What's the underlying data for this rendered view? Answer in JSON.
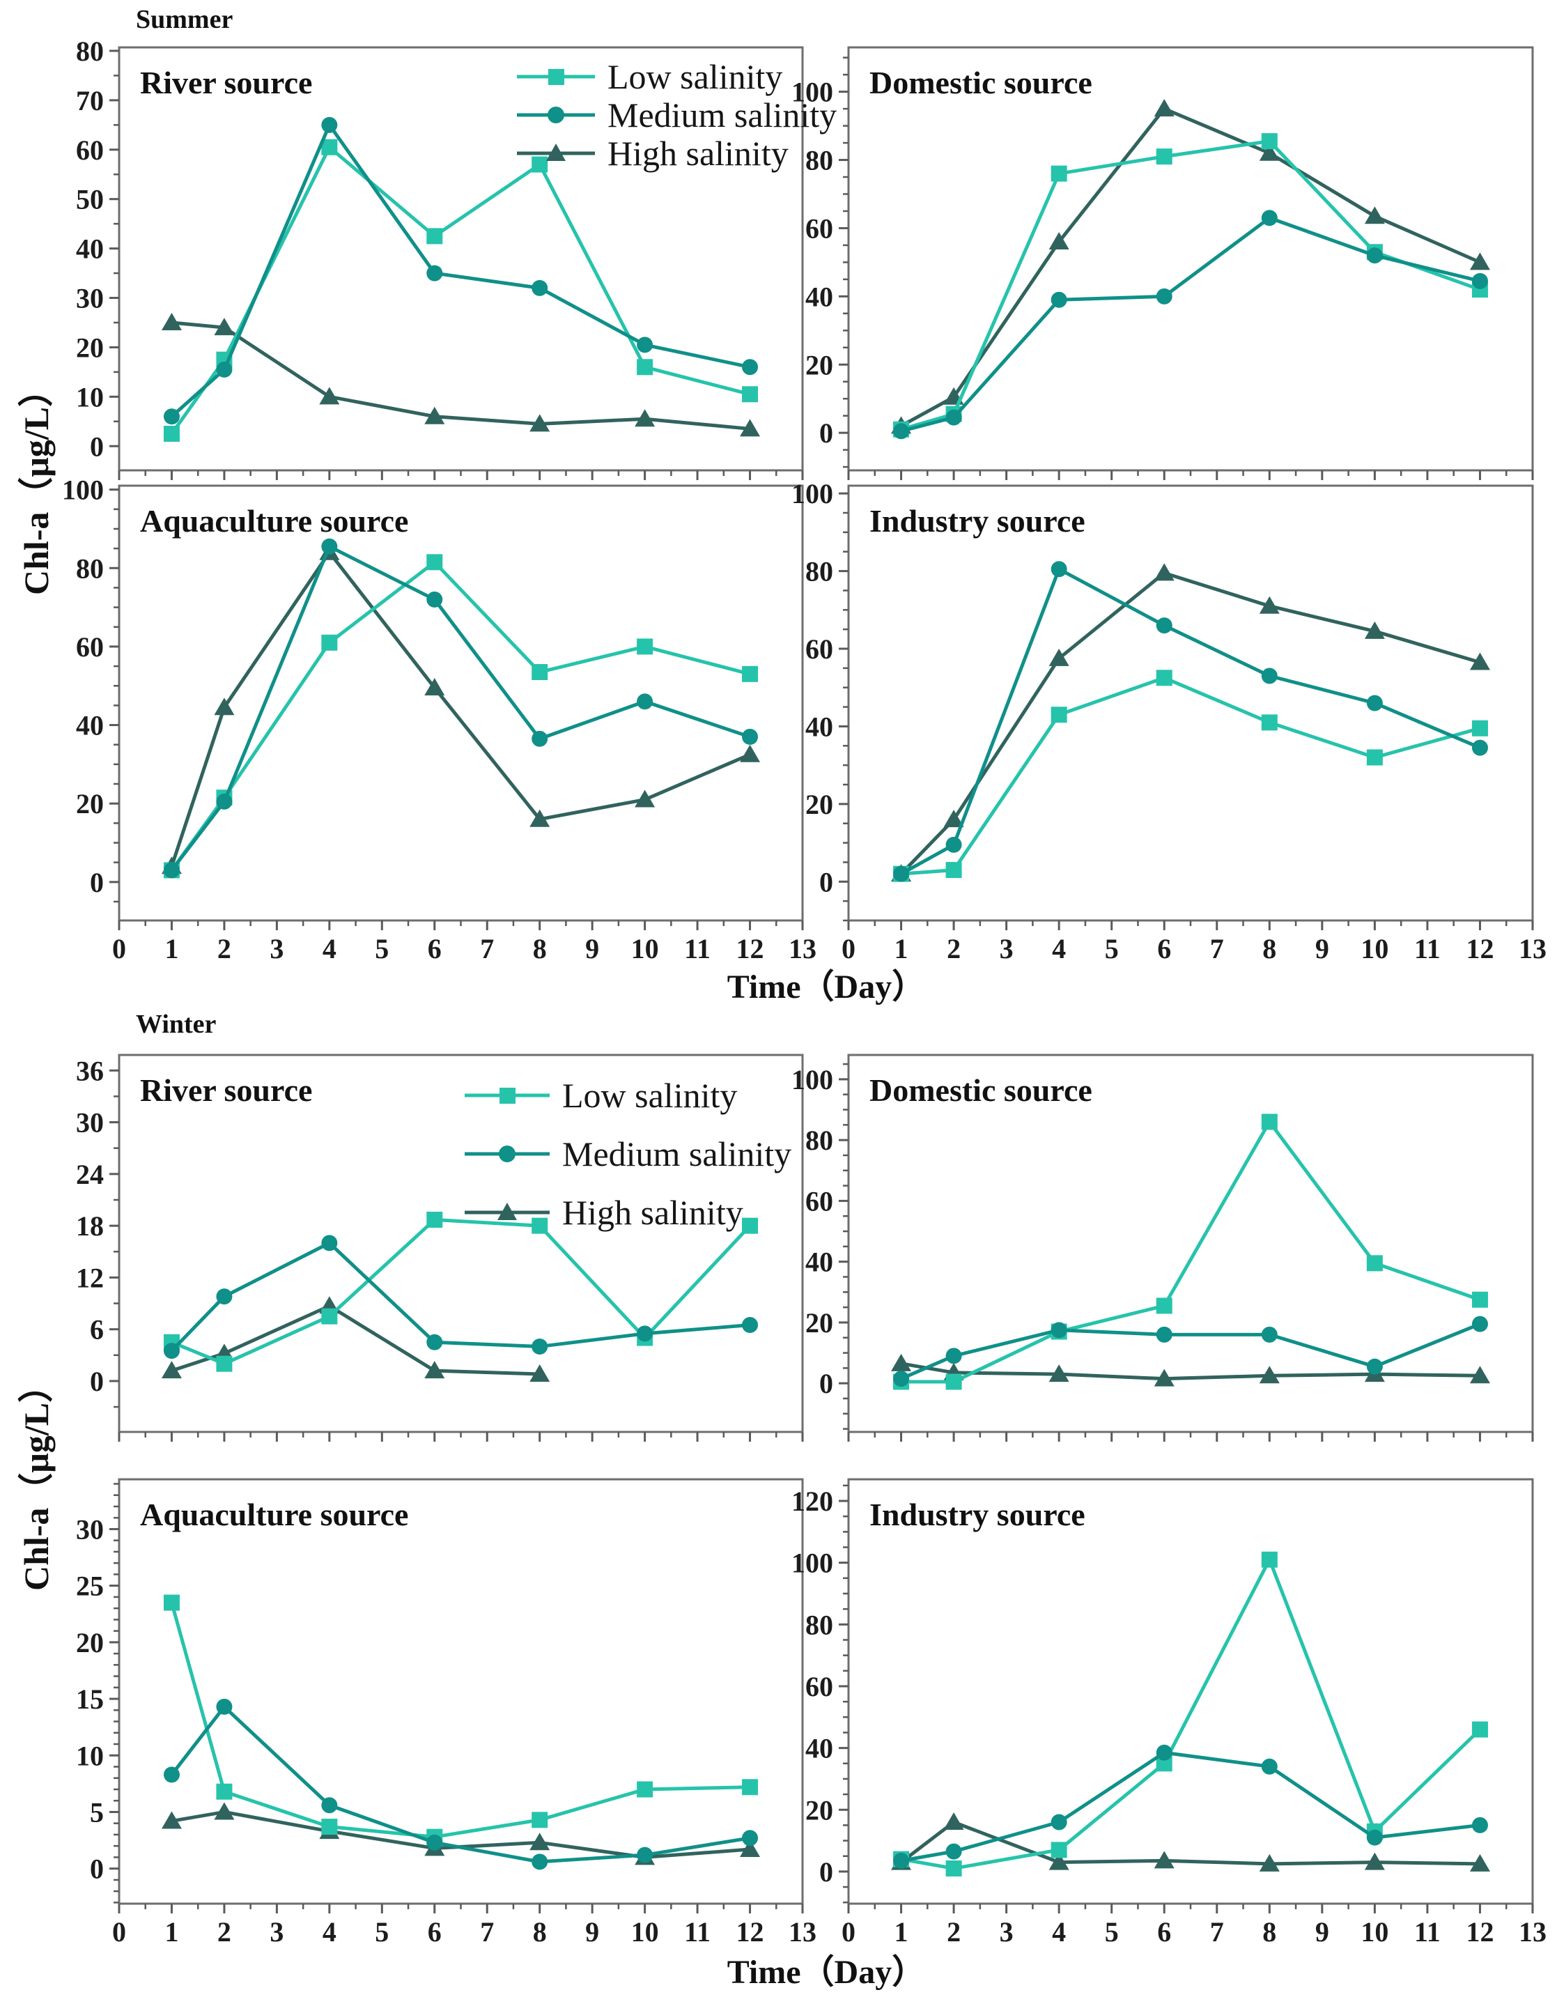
{
  "figure": {
    "y_axis_label": "Chl-a（μg/L）",
    "x_axis_label": "Time（Day）",
    "seasons": [
      {
        "title": "Summer"
      },
      {
        "title": "Winter"
      }
    ],
    "legend": {
      "items": [
        {
          "label": "Low salinity",
          "marker": "square",
          "color": "#26C3AB"
        },
        {
          "label": "Medium salinity",
          "marker": "circle",
          "color": "#0F9089"
        },
        {
          "label": "High salinity",
          "marker": "triangle",
          "color": "#31635E"
        }
      ]
    },
    "axis_color": "#6E6E6E",
    "tick_color": "#5A5A5A",
    "text_color": "#1C1C1C"
  },
  "chart_data": [
    {
      "type": "line",
      "season": "Summer",
      "title": "River source",
      "has_legend": true,
      "xlabel": "Time（Day）",
      "ylabel": "Chl-a（μg/L）",
      "x": [
        1,
        2,
        4,
        6,
        8,
        10,
        12
      ],
      "xlim": [
        0,
        13
      ],
      "xticks": [
        0,
        1,
        2,
        3,
        4,
        5,
        6,
        7,
        8,
        9,
        10,
        11,
        12,
        13
      ],
      "yticks": [
        0,
        10,
        20,
        30,
        40,
        50,
        60,
        70,
        80
      ],
      "ylim": [
        0,
        80
      ],
      "series": [
        {
          "name": "Low salinity",
          "marker": "square",
          "color": "#26C3AB",
          "values": [
            2.5,
            17.5,
            60.5,
            42.5,
            57,
            16,
            10.5
          ]
        },
        {
          "name": "Medium salinity",
          "marker": "circle",
          "color": "#0F9089",
          "values": [
            6,
            15.5,
            65,
            35,
            32,
            20.5,
            16
          ]
        },
        {
          "name": "High salinity",
          "marker": "triangle",
          "color": "#31635E",
          "values": [
            25,
            24,
            10,
            6,
            4.5,
            5.5,
            3.5
          ]
        }
      ]
    },
    {
      "type": "line",
      "season": "Summer",
      "title": "Domestic source",
      "has_legend": false,
      "xlabel": "Time（Day）",
      "ylabel": "Chl-a（μg/L）",
      "x": [
        1,
        2,
        4,
        6,
        8,
        10,
        12
      ],
      "xlim": [
        0,
        13
      ],
      "xticks": [
        0,
        1,
        2,
        3,
        4,
        5,
        6,
        7,
        8,
        9,
        10,
        11,
        12,
        13
      ],
      "yticks": [
        0,
        20,
        40,
        60,
        80,
        100
      ],
      "ylim": [
        0,
        100
      ],
      "series": [
        {
          "name": "Low salinity",
          "marker": "square",
          "color": "#26C3AB",
          "values": [
            1,
            5.5,
            76,
            81,
            85.5,
            53,
            42
          ]
        },
        {
          "name": "Medium salinity",
          "marker": "circle",
          "color": "#0F9089",
          "values": [
            0.5,
            4.5,
            39,
            40,
            63,
            52,
            44.5
          ]
        },
        {
          "name": "High salinity",
          "marker": "triangle",
          "color": "#31635E",
          "values": [
            2,
            10.5,
            56,
            95,
            82,
            63.5,
            50
          ]
        }
      ]
    },
    {
      "type": "line",
      "season": "Summer",
      "title": "Aquaculture source",
      "has_legend": false,
      "xlabel": "Time（Day）",
      "ylabel": "Chl-a（μg/L）",
      "x": [
        1,
        2,
        4,
        6,
        8,
        10,
        12
      ],
      "xlim": [
        0,
        13
      ],
      "xticks": [
        0,
        1,
        2,
        3,
        4,
        5,
        6,
        7,
        8,
        9,
        10,
        11,
        12,
        13
      ],
      "yticks": [
        0,
        20,
        40,
        60,
        80,
        100
      ],
      "ylim": [
        0,
        100
      ],
      "series": [
        {
          "name": "Low salinity",
          "marker": "square",
          "color": "#26C3AB",
          "values": [
            3,
            21.5,
            61,
            81.5,
            53.5,
            60,
            53
          ]
        },
        {
          "name": "Medium salinity",
          "marker": "circle",
          "color": "#0F9089",
          "values": [
            3,
            20.5,
            85.5,
            72,
            36.5,
            46,
            37
          ]
        },
        {
          "name": "High salinity",
          "marker": "triangle",
          "color": "#31635E",
          "values": [
            4,
            44.5,
            84,
            49.5,
            16,
            21,
            32.5
          ]
        }
      ]
    },
    {
      "type": "line",
      "season": "Summer",
      "title": "Industry source",
      "has_legend": false,
      "xlabel": "Time（Day）",
      "ylabel": "Chl-a（μg/L）",
      "x": [
        1,
        2,
        4,
        6,
        8,
        10,
        12
      ],
      "xlim": [
        0,
        13
      ],
      "xticks": [
        0,
        1,
        2,
        3,
        4,
        5,
        6,
        7,
        8,
        9,
        10,
        11,
        12,
        13
      ],
      "yticks": [
        0,
        20,
        40,
        60,
        80,
        100
      ],
      "ylim": [
        0,
        100
      ],
      "series": [
        {
          "name": "Low salinity",
          "marker": "square",
          "color": "#26C3AB",
          "values": [
            2,
            3,
            43,
            52.5,
            41,
            32,
            39.5
          ]
        },
        {
          "name": "Medium salinity",
          "marker": "circle",
          "color": "#0F9089",
          "values": [
            2,
            9.5,
            80.5,
            66,
            53,
            46,
            34.5
          ]
        },
        {
          "name": "High salinity",
          "marker": "triangle",
          "color": "#31635E",
          "values": [
            2,
            16,
            57.5,
            79.5,
            71,
            64.5,
            56.5
          ]
        }
      ]
    },
    {
      "type": "line",
      "season": "Winter",
      "title": "River source",
      "has_legend": true,
      "xlabel": "Time（Day）",
      "ylabel": "Chl-a（μg/L）",
      "x": [
        1,
        2,
        4,
        6,
        8,
        10,
        12
      ],
      "xlim": [
        0,
        13
      ],
      "xticks": [
        0,
        1,
        2,
        3,
        4,
        5,
        6,
        7,
        8,
        9,
        10,
        11,
        12,
        13
      ],
      "yticks": [
        0,
        6,
        12,
        18,
        24,
        30,
        36
      ],
      "ylim": [
        0,
        36
      ],
      "series": [
        {
          "name": "Low salinity",
          "marker": "square",
          "color": "#26C3AB",
          "values": [
            4.5,
            2,
            7.5,
            18.7,
            18,
            5,
            18
          ]
        },
        {
          "name": "Medium salinity",
          "marker": "circle",
          "color": "#0F9089",
          "values": [
            3.5,
            9.8,
            16,
            4.5,
            4,
            5.5,
            6.5
          ]
        },
        {
          "name": "High salinity",
          "marker": "triangle",
          "color": "#31635E",
          "values": [
            1.2,
            3.2,
            8.7,
            1.2,
            0.8,
            null,
            null
          ]
        }
      ]
    },
    {
      "type": "line",
      "season": "Winter",
      "title": "Domestic source",
      "has_legend": false,
      "xlabel": "Time（Day）",
      "ylabel": "Chl-a（μg/L）",
      "x": [
        1,
        2,
        4,
        6,
        8,
        10,
        12
      ],
      "xlim": [
        0,
        13
      ],
      "xticks": [
        0,
        1,
        2,
        3,
        4,
        5,
        6,
        7,
        8,
        9,
        10,
        11,
        12,
        13
      ],
      "yticks": [
        0,
        20,
        40,
        60,
        80,
        100
      ],
      "ylim": [
        0,
        100
      ],
      "series": [
        {
          "name": "Low salinity",
          "marker": "square",
          "color": "#26C3AB",
          "values": [
            0.5,
            0.5,
            17,
            25.5,
            86,
            39.5,
            27.5
          ]
        },
        {
          "name": "Medium salinity",
          "marker": "circle",
          "color": "#0F9089",
          "values": [
            1.5,
            9,
            17.5,
            16,
            16,
            5.5,
            19.5
          ]
        },
        {
          "name": "High salinity",
          "marker": "triangle",
          "color": "#31635E",
          "values": [
            6.5,
            3.5,
            3,
            1.5,
            2.5,
            3,
            2.5
          ]
        }
      ]
    },
    {
      "type": "line",
      "season": "Winter",
      "title": "Aquaculture source",
      "has_legend": false,
      "xlabel": "Time（Day）",
      "ylabel": "Chl-a（μg/L）",
      "x": [
        1,
        2,
        4,
        6,
        8,
        10,
        12
      ],
      "xlim": [
        0,
        13
      ],
      "xticks": [
        0,
        1,
        2,
        3,
        4,
        5,
        6,
        7,
        8,
        9,
        10,
        11,
        12,
        13
      ],
      "yticks": [
        0,
        5,
        10,
        15,
        20,
        25,
        30
      ],
      "ylim": [
        0,
        30
      ],
      "series": [
        {
          "name": "Low salinity",
          "marker": "square",
          "color": "#26C3AB",
          "values": [
            23.5,
            6.8,
            3.7,
            2.8,
            4.3,
            7,
            7.2
          ]
        },
        {
          "name": "Medium salinity",
          "marker": "circle",
          "color": "#0F9089",
          "values": [
            8.3,
            14.3,
            5.6,
            2.3,
            0.6,
            1.2,
            2.7
          ]
        },
        {
          "name": "High salinity",
          "marker": "triangle",
          "color": "#31635E",
          "values": [
            4.2,
            5,
            3.3,
            1.8,
            2.3,
            1,
            1.7
          ]
        }
      ]
    },
    {
      "type": "line",
      "season": "Winter",
      "title": "Industry source",
      "has_legend": false,
      "xlabel": "Time（Day）",
      "ylabel": "Chl-a（μg/L）",
      "x": [
        1,
        2,
        4,
        6,
        8,
        10,
        12
      ],
      "xlim": [
        0,
        13
      ],
      "xticks": [
        0,
        1,
        2,
        3,
        4,
        5,
        6,
        7,
        8,
        9,
        10,
        11,
        12,
        13
      ],
      "yticks": [
        0,
        20,
        40,
        60,
        80,
        100,
        120
      ],
      "ylim": [
        0,
        120
      ],
      "series": [
        {
          "name": "Low salinity",
          "marker": "square",
          "color": "#26C3AB",
          "values": [
            4,
            1,
            7,
            35,
            101,
            13,
            46
          ]
        },
        {
          "name": "Medium salinity",
          "marker": "circle",
          "color": "#0F9089",
          "values": [
            3.5,
            6.5,
            16,
            38.5,
            34,
            11,
            15
          ]
        },
        {
          "name": "High salinity",
          "marker": "triangle",
          "color": "#31635E",
          "values": [
            3,
            16,
            3,
            3.5,
            2.5,
            3,
            2.5
          ]
        }
      ]
    }
  ]
}
